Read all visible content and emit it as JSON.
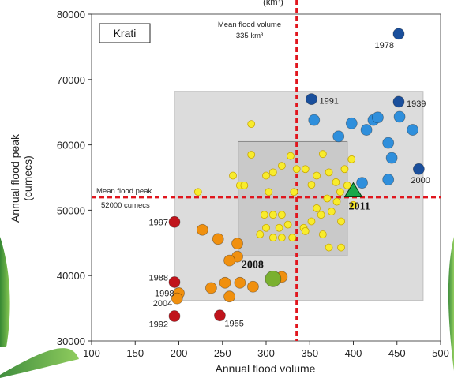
{
  "chart_data": {
    "type": "scatter",
    "title": "Krati",
    "top_partial_label": "(km³)",
    "xlabel": "Annual flood volume",
    "ylabel": "Annual flood peak",
    "ylabel_unit": "(cumecs)",
    "xlim": [
      100,
      500
    ],
    "ylim": [
      30000,
      80000
    ],
    "xticks": [
      "100",
      "150",
      "200",
      "250",
      "300",
      "350",
      "400",
      "450",
      "500"
    ],
    "yticks": [
      "30000",
      "40000",
      "50000",
      "60000",
      "70000",
      "80000"
    ],
    "grid": false,
    "reference_lines": {
      "mean_volume": {
        "value": 335,
        "label": "Mean flood volume",
        "sublabel": "335 km³"
      },
      "mean_peak": {
        "value": 52000,
        "label": "Mean flood peak",
        "sublabel": "52000 cumecs"
      }
    },
    "colors": {
      "dark_red": "#c0141c",
      "orange": "#f0900f",
      "yellow": "#f8ec2c",
      "light_blue": "#2f8fdc",
      "dark_blue": "#1a4f9c",
      "green": "#7ab030",
      "triangle": "#1aa84a",
      "ref_line": "#e0161e",
      "outer_box": "#dcdcdc",
      "inner_box": "#c9c9c9"
    },
    "series": [
      {
        "group": "extreme_low",
        "color": "#c0141c",
        "points": [
          {
            "x": 195,
            "y": 48200,
            "label": "1997"
          },
          {
            "x": 195,
            "y": 39000,
            "label": "1988"
          },
          {
            "x": 195,
            "y": 33800,
            "label": "1992"
          },
          {
            "x": 247,
            "y": 33900,
            "label": "1955"
          }
        ]
      },
      {
        "group": "low",
        "color": "#f0900f",
        "points": [
          {
            "x": 200,
            "y": 37300,
            "label": "1998"
          },
          {
            "x": 198,
            "y": 36500,
            "label": "2004"
          },
          {
            "x": 227,
            "y": 47000
          },
          {
            "x": 245,
            "y": 45600
          },
          {
            "x": 267,
            "y": 44900
          },
          {
            "x": 267,
            "y": 42900
          },
          {
            "x": 258,
            "y": 42300
          },
          {
            "x": 237,
            "y": 38100
          },
          {
            "x": 253,
            "y": 38900
          },
          {
            "x": 270,
            "y": 38900
          },
          {
            "x": 285,
            "y": 38300
          },
          {
            "x": 258,
            "y": 36800
          },
          {
            "x": 318,
            "y": 39800
          }
        ]
      },
      {
        "group": "medium",
        "color": "#f8ec2c",
        "points": [
          {
            "x": 283,
            "y": 63200
          },
          {
            "x": 283,
            "y": 58500
          },
          {
            "x": 300,
            "y": 55300
          },
          {
            "x": 308,
            "y": 55800
          },
          {
            "x": 318,
            "y": 56800
          },
          {
            "x": 262,
            "y": 55300
          },
          {
            "x": 270,
            "y": 53800
          },
          {
            "x": 275,
            "y": 53800
          },
          {
            "x": 303,
            "y": 52800
          },
          {
            "x": 328,
            "y": 58300
          },
          {
            "x": 335,
            "y": 56300
          },
          {
            "x": 345,
            "y": 56300
          },
          {
            "x": 352,
            "y": 53900
          },
          {
            "x": 358,
            "y": 55300
          },
          {
            "x": 365,
            "y": 58600
          },
          {
            "x": 372,
            "y": 55800
          },
          {
            "x": 380,
            "y": 54300
          },
          {
            "x": 390,
            "y": 56300
          },
          {
            "x": 398,
            "y": 57800
          },
          {
            "x": 385,
            "y": 52800
          },
          {
            "x": 393,
            "y": 53800
          },
          {
            "x": 332,
            "y": 52800
          },
          {
            "x": 222,
            "y": 52800
          },
          {
            "x": 298,
            "y": 49300
          },
          {
            "x": 308,
            "y": 49300
          },
          {
            "x": 318,
            "y": 49300
          },
          {
            "x": 300,
            "y": 47300
          },
          {
            "x": 315,
            "y": 47300
          },
          {
            "x": 325,
            "y": 47800
          },
          {
            "x": 293,
            "y": 46300
          },
          {
            "x": 308,
            "y": 45800
          },
          {
            "x": 318,
            "y": 45800
          },
          {
            "x": 330,
            "y": 45800
          },
          {
            "x": 343,
            "y": 47300
          },
          {
            "x": 352,
            "y": 48300
          },
          {
            "x": 363,
            "y": 49300
          },
          {
            "x": 375,
            "y": 49800
          },
          {
            "x": 386,
            "y": 48300
          },
          {
            "x": 358,
            "y": 50300
          },
          {
            "x": 370,
            "y": 51800
          },
          {
            "x": 381,
            "y": 51300
          },
          {
            "x": 345,
            "y": 46800
          },
          {
            "x": 365,
            "y": 46300
          },
          {
            "x": 372,
            "y": 44300
          },
          {
            "x": 386,
            "y": 44300
          },
          {
            "x": 400,
            "y": 50800
          }
        ]
      },
      {
        "group": "high",
        "color": "#2f8fdc",
        "points": [
          {
            "x": 355,
            "y": 63800
          },
          {
            "x": 383,
            "y": 61300
          },
          {
            "x": 398,
            "y": 63300
          },
          {
            "x": 415,
            "y": 62300
          },
          {
            "x": 423,
            "y": 63800
          },
          {
            "x": 428,
            "y": 64200
          },
          {
            "x": 453,
            "y": 64300
          },
          {
            "x": 468,
            "y": 62300
          },
          {
            "x": 440,
            "y": 60300
          },
          {
            "x": 444,
            "y": 58000
          },
          {
            "x": 410,
            "y": 54200
          },
          {
            "x": 440,
            "y": 54700
          }
        ]
      },
      {
        "group": "extreme_high",
        "color": "#1a4f9c",
        "points": [
          {
            "x": 452,
            "y": 77000,
            "label": "1978"
          },
          {
            "x": 352,
            "y": 67000,
            "label": "1991"
          },
          {
            "x": 452,
            "y": 66600,
            "label": "1939"
          },
          {
            "x": 475,
            "y": 56300,
            "label": "2000"
          }
        ]
      },
      {
        "group": "highlight_2008",
        "color": "#7ab030",
        "points": [
          {
            "x": 308,
            "y": 39500,
            "label": "2008"
          }
        ]
      },
      {
        "group": "highlight_2011",
        "color": "#1aa84a",
        "marker": "triangle",
        "points": [
          {
            "x": 400,
            "y": 53000,
            "label": "2011"
          }
        ]
      }
    ]
  }
}
